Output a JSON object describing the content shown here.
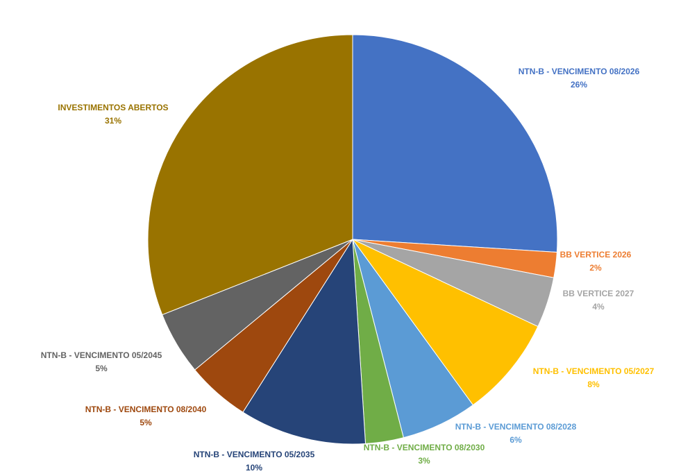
{
  "chart_data": {
    "type": "pie",
    "categories": [
      "NTN-B - VENCIMENTO 08/2026",
      "BB VERTICE 2026",
      "BB VERTICE 2027",
      "NTN-B - VENCIMENTO 05/2027",
      "NTN-B - VENCIMENTO 08/2028",
      "NTN-B - VENCIMENTO 08/2030",
      "NTN-B - VENCIMENTO 05/2035",
      "NTN-B - VENCIMENTO 08/2040",
      "NTN-B - VENCIMENTO 05/2045",
      "INVESTIMENTOS ABERTOS"
    ],
    "values": [
      26,
      2,
      4,
      8,
      6,
      3,
      10,
      5,
      5,
      31
    ],
    "value_labels": [
      "26%",
      "2%",
      "4%",
      "8%",
      "6%",
      "3%",
      "10%",
      "5%",
      "5%",
      "31%"
    ],
    "colors": [
      "#4472c4",
      "#ed7d31",
      "#a5a5a5",
      "#ffc000",
      "#5b9bd5",
      "#70ad47",
      "#264478",
      "#9e480e",
      "#636363",
      "#997300"
    ]
  }
}
